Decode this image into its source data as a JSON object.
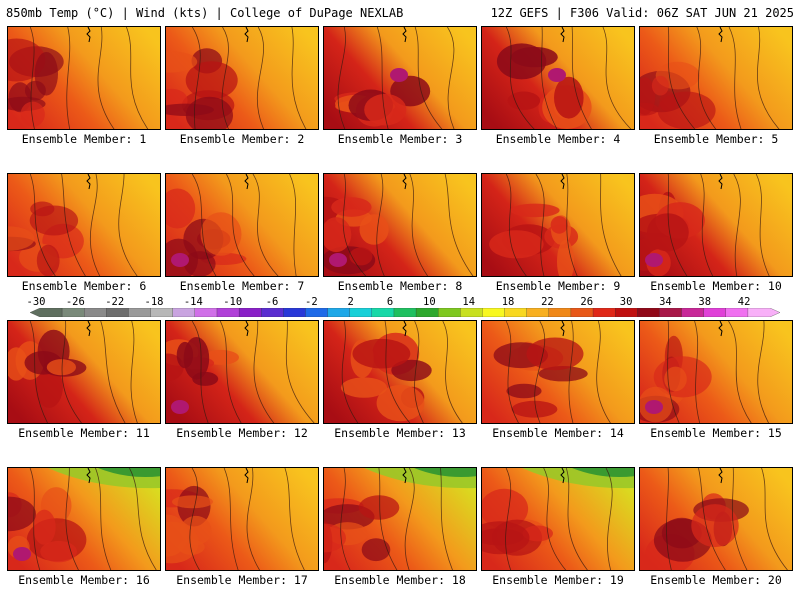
{
  "header": {
    "left": "850mb Temp (°C) | Wind (kts) | College of DuPage NEXLAB",
    "right": "12Z GEFS | F306 Valid: 06Z SAT JUN 21 2025"
  },
  "members": [
    {
      "label": "Ensemble Member: 1",
      "warm": 0.45,
      "cool": 0.3,
      "corner": "left"
    },
    {
      "label": "Ensemble Member: 2",
      "warm": 0.55,
      "cool": 0.4,
      "corner": "left"
    },
    {
      "label": "Ensemble Member: 3",
      "warm": 0.85,
      "cool": 0.1,
      "corner": "center"
    },
    {
      "label": "Ensemble Member: 4",
      "warm": 0.9,
      "cool": 0.05,
      "corner": "center"
    },
    {
      "label": "Ensemble Member: 5",
      "warm": 0.35,
      "cool": 0.35,
      "corner": "left"
    },
    {
      "label": "Ensemble Member: 6",
      "warm": 0.45,
      "cool": 0.2,
      "corner": "left"
    },
    {
      "label": "Ensemble Member: 7",
      "warm": 0.55,
      "cool": 0.15,
      "corner": "left"
    },
    {
      "label": "Ensemble Member: 8",
      "warm": 0.85,
      "cool": 0.1,
      "corner": "left"
    },
    {
      "label": "Ensemble Member: 9",
      "warm": 0.8,
      "cool": 0.05,
      "corner": "center"
    },
    {
      "label": "Ensemble Member: 10",
      "warm": 0.85,
      "cool": 0.05,
      "corner": "left"
    },
    {
      "label": "Ensemble Member: 11",
      "warm": 0.75,
      "cool": 0.05,
      "corner": "left"
    },
    {
      "label": "Ensemble Member: 12",
      "warm": 0.85,
      "cool": 0.05,
      "corner": "left"
    },
    {
      "label": "Ensemble Member: 13",
      "warm": 0.8,
      "cool": 0.05,
      "corner": "center"
    },
    {
      "label": "Ensemble Member: 14",
      "warm": 0.65,
      "cool": 0.1,
      "corner": "center"
    },
    {
      "label": "Ensemble Member: 15",
      "warm": 0.4,
      "cool": 0.1,
      "corner": "left"
    },
    {
      "label": "Ensemble Member: 16",
      "warm": 0.55,
      "cool": 0.6,
      "corner": "left"
    },
    {
      "label": "Ensemble Member: 17",
      "warm": 0.55,
      "cool": 0.1,
      "corner": "left"
    },
    {
      "label": "Ensemble Member: 18",
      "warm": 0.55,
      "cool": 0.55,
      "corner": "left"
    },
    {
      "label": "Ensemble Member: 19",
      "warm": 0.6,
      "cool": 0.65,
      "corner": "left"
    },
    {
      "label": "Ensemble Member: 20",
      "warm": 0.55,
      "cool": 0.05,
      "corner": "center"
    }
  ],
  "colorbar": {
    "labels": [
      "-30",
      "-26",
      "-22",
      "-18",
      "-14",
      "-10",
      "-6",
      "-2",
      "2",
      "6",
      "10",
      "14",
      "18",
      "22",
      "26",
      "30",
      "34",
      "38",
      "42"
    ],
    "colors": [
      "#5f6f5f",
      "#7a8a7a",
      "#8a8a8a",
      "#6e6e6e",
      "#9a9a9a",
      "#b7b7b7",
      "#c9a4e0",
      "#d070e8",
      "#b040d8",
      "#8a20c8",
      "#5a2ed0",
      "#2838d8",
      "#1e6ae8",
      "#1ea8e8",
      "#18d0d8",
      "#18d8a8",
      "#1fc060",
      "#2ea82e",
      "#7ec820",
      "#c8e020",
      "#f8f820",
      "#f8d820",
      "#f8b020",
      "#f08818",
      "#e85818",
      "#e02818",
      "#c01010",
      "#900818",
      "#a81848",
      "#c82898",
      "#e040d8",
      "#f070f0",
      "#f8b0f8"
    ]
  }
}
